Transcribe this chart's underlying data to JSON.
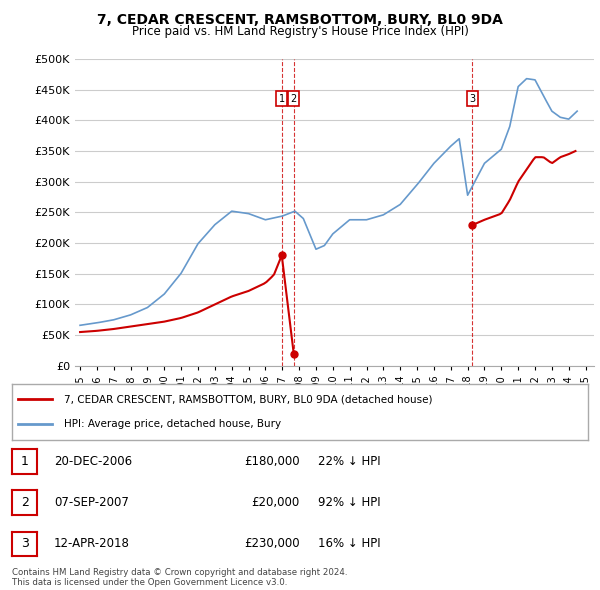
{
  "title": "7, CEDAR CRESCENT, RAMSBOTTOM, BURY, BL0 9DA",
  "subtitle": "Price paid vs. HM Land Registry's House Price Index (HPI)",
  "ylim": [
    0,
    500000
  ],
  "yticks": [
    0,
    50000,
    100000,
    150000,
    200000,
    250000,
    300000,
    350000,
    400000,
    450000,
    500000
  ],
  "xlim_start": 1994.7,
  "xlim_end": 2025.5,
  "legend_line1": "7, CEDAR CRESCENT, RAMSBOTTOM, BURY, BL0 9DA (detached house)",
  "legend_line2": "HPI: Average price, detached house, Bury",
  "red_line_color": "#cc0000",
  "blue_line_color": "#6699cc",
  "grid_color": "#cccccc",
  "copyright_text": "Contains HM Land Registry data © Crown copyright and database right 2024.\nThis data is licensed under the Open Government Licence v3.0.",
  "transactions": [
    {
      "label": "1",
      "date_num": 2006.97,
      "price": 180000,
      "text": "20-DEC-2006",
      "price_text": "£180,000",
      "pct_text": "22% ↓ HPI"
    },
    {
      "label": "2",
      "date_num": 2007.68,
      "price": 20000,
      "text": "07-SEP-2007",
      "price_text": "£20,000",
      "pct_text": "92% ↓ HPI"
    },
    {
      "label": "3",
      "date_num": 2018.28,
      "price": 230000,
      "text": "12-APR-2018",
      "price_text": "£230,000",
      "pct_text": "16% ↓ HPI"
    }
  ]
}
